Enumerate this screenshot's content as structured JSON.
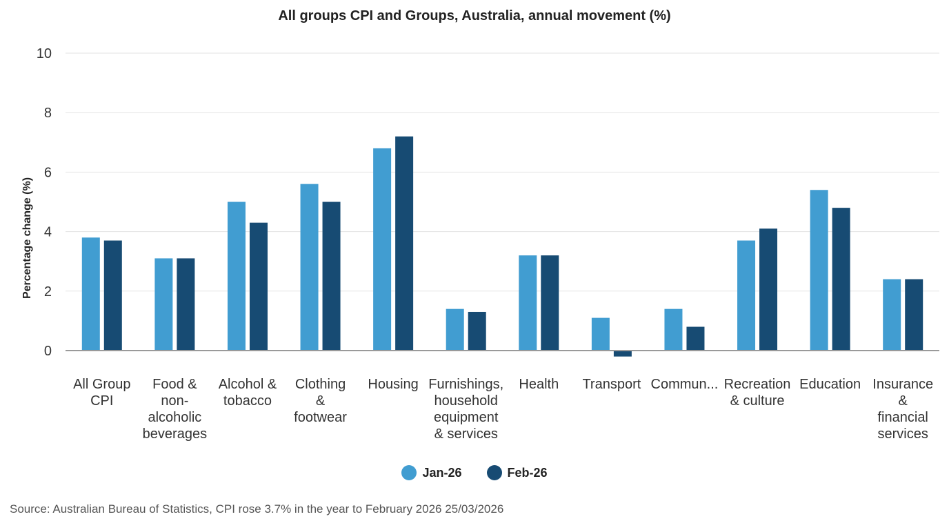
{
  "chart_data": {
    "type": "bar",
    "title": "All groups CPI and Groups, Australia, annual movement (%)",
    "ylabel": "Percentage change (%)",
    "xlabel": "",
    "ylim": [
      0,
      10
    ],
    "yticks": [
      0,
      2,
      4,
      6,
      8,
      10
    ],
    "grid": true,
    "legend_position": "bottom",
    "categories": [
      [
        "All Group",
        "CPI"
      ],
      [
        "Food &",
        "non-",
        "alcoholic",
        "beverages"
      ],
      [
        "Alcohol &",
        "tobacco"
      ],
      [
        "Clothing",
        "&",
        "footwear"
      ],
      [
        "Housing"
      ],
      [
        "Furnishings,",
        "household",
        "equipment",
        "& services"
      ],
      [
        "Health"
      ],
      [
        "Transport"
      ],
      [
        "Commun..."
      ],
      [
        "Recreation",
        "& culture"
      ],
      [
        "Education"
      ],
      [
        "Insurance",
        "&",
        "financial",
        "services"
      ]
    ],
    "series": [
      {
        "name": "Jan-26",
        "color": "#419dd1",
        "values": [
          3.8,
          3.1,
          5.0,
          5.6,
          6.8,
          1.4,
          3.2,
          1.1,
          1.4,
          3.7,
          5.4,
          2.4
        ]
      },
      {
        "name": "Feb-26",
        "color": "#174b73",
        "values": [
          3.7,
          3.1,
          4.3,
          5.0,
          7.2,
          1.3,
          3.2,
          -0.2,
          0.8,
          4.1,
          4.8,
          2.4
        ]
      }
    ]
  },
  "source": "Source: Australian Bureau of Statistics, CPI rose 3.7% in the year to February 2026 25/03/2026"
}
